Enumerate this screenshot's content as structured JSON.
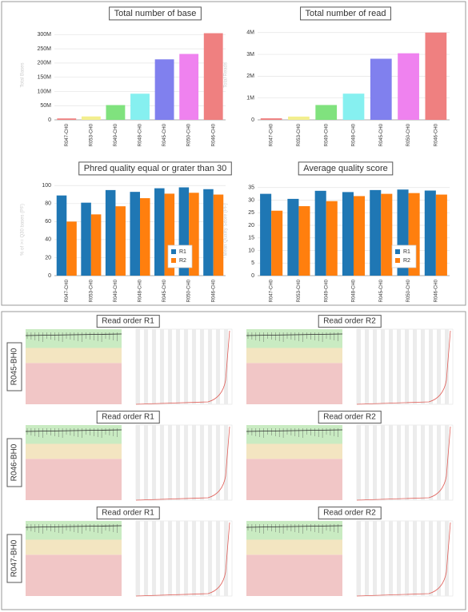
{
  "chart_data": [
    {
      "type": "bar",
      "title": "Total number of base",
      "ylabel": "Total Bases",
      "categories": [
        "R047-CH0",
        "R053-CH0",
        "R049-CH0",
        "R048-CH0",
        "R045-CH0",
        "R050-CH0",
        "R046-CH0"
      ],
      "values": [
        5000000,
        12000000,
        52000000,
        92000000,
        213000000,
        232000000,
        305000000
      ],
      "colors": [
        "#f08080",
        "#f3ef8e",
        "#80e27e",
        "#86f0f0",
        "#8080ee",
        "#ef82ef",
        "#ef8080"
      ],
      "ylim": [
        0,
        315000000
      ],
      "yticks": [
        0,
        {
          "value": 50000000,
          "label": "50M"
        },
        {
          "value": 100000000,
          "label": "100M"
        },
        {
          "value": 150000000,
          "label": "150M"
        },
        {
          "value": 200000000,
          "label": "200M"
        },
        {
          "value": 250000000,
          "label": "250M"
        },
        {
          "value": 300000000,
          "label": "300M"
        }
      ],
      "grid": true
    },
    {
      "type": "bar",
      "title": "Total number of read",
      "ylabel": "Total Reads",
      "categories": [
        "R047-CH0",
        "R053-CH0",
        "R049-CH0",
        "R048-CH0",
        "R045-CH0",
        "R050-CH0",
        "R046-CH0"
      ],
      "values": [
        70000,
        150000,
        680000,
        1200000,
        2800000,
        3050000,
        4000000
      ],
      "colors": [
        "#f08080",
        "#f3ef8e",
        "#80e27e",
        "#86f0f0",
        "#8080ee",
        "#ef82ef",
        "#ef8080"
      ],
      "ylim": [
        0,
        4100000
      ],
      "yticks": [
        0,
        {
          "value": 1000000,
          "label": "1M"
        },
        {
          "value": 2000000,
          "label": "2M"
        },
        {
          "value": 3000000,
          "label": "3M"
        },
        {
          "value": 4000000,
          "label": "4M"
        }
      ],
      "grid": true
    },
    {
      "type": "bar",
      "title": "Phred quality equal or grater than 30",
      "ylabel": "% of >= Q30 bases (PF)",
      "categories": [
        "R047-CH0",
        "R053-CH0",
        "R049-CH0",
        "R048-CH0",
        "R045-CH0",
        "R050-CH0",
        "R046-CH0"
      ],
      "series": [
        {
          "name": "R1",
          "color": "#1f77b4",
          "values": [
            89,
            81,
            95,
            93,
            97,
            98,
            96
          ]
        },
        {
          "name": "R2",
          "color": "#ff7f0e",
          "values": [
            60,
            68,
            77,
            86,
            91,
            92,
            90
          ]
        }
      ],
      "ylim": [
        0,
        102
      ],
      "yticks": [
        0,
        20,
        40,
        60,
        80,
        100
      ],
      "grid": true,
      "legend": "lower right"
    },
    {
      "type": "bar",
      "title": "Average quality score",
      "ylabel": "Mean Quality Score (PF)",
      "categories": [
        "R047-CH0",
        "R053-CH0",
        "R049-CH0",
        "R048-CH0",
        "R045-CH0",
        "R050-CH0",
        "R046-CH0"
      ],
      "series": [
        {
          "name": "R1",
          "color": "#1f77b4",
          "values": [
            32.5,
            30.5,
            33.7,
            33.2,
            34,
            34.2,
            33.8
          ]
        },
        {
          "name": "R2",
          "color": "#ff7f0e",
          "values": [
            25.8,
            27.6,
            29.6,
            31.6,
            32.5,
            32.8,
            32.2
          ]
        }
      ],
      "ylim": [
        0,
        36.5
      ],
      "yticks": [
        0,
        5,
        10,
        15,
        20,
        25,
        30,
        35
      ],
      "grid": true,
      "legend": "lower right"
    }
  ],
  "quality_panel": {
    "rows": [
      {
        "label": "R045-BH0",
        "columns": [
          "Read order R1",
          "Read order R2"
        ]
      },
      {
        "label": "R046-BH0",
        "columns": [
          "Read order R1",
          "Read order R2"
        ]
      },
      {
        "label": "R047-BH0",
        "columns": [
          "Read order R1",
          "Read order R2"
        ]
      }
    ]
  }
}
